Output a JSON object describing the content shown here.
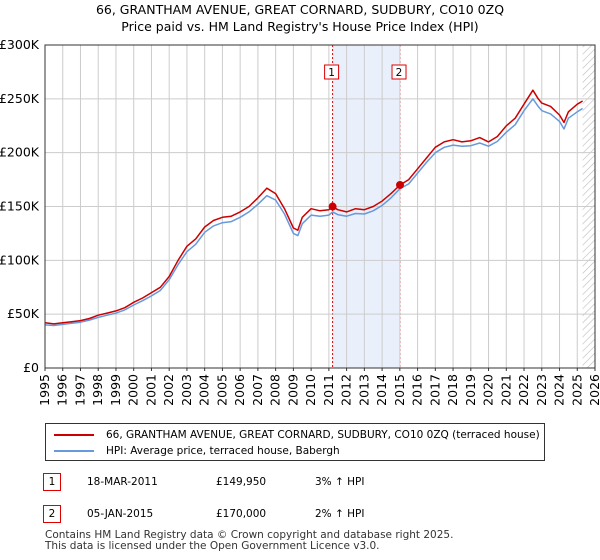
{
  "chart_data": {
    "type": "line",
    "title": "66, GRANTHAM AVENUE, GREAT CORNARD, SUDBURY, CO10 0ZQ",
    "subtitle": "Price paid vs. HM Land Registry's House Price Index (HPI)",
    "xlabel": "",
    "ylabel": "",
    "xlim": [
      1995,
      2026
    ],
    "ylim": [
      0,
      300000
    ],
    "y_ticks": [
      0,
      50000,
      100000,
      150000,
      200000,
      250000,
      300000
    ],
    "y_tick_labels": [
      "£0",
      "£50K",
      "£100K",
      "£150K",
      "£200K",
      "£250K",
      "£300K"
    ],
    "x_ticks": [
      1995,
      1996,
      1997,
      1998,
      1999,
      2000,
      2001,
      2002,
      2003,
      2004,
      2005,
      2006,
      2007,
      2008,
      2009,
      2010,
      2011,
      2012,
      2013,
      2014,
      2015,
      2016,
      2017,
      2018,
      2019,
      2020,
      2021,
      2022,
      2023,
      2024,
      2025,
      2026
    ],
    "x_tick_labels": [
      "1995",
      "1996",
      "1997",
      "1998",
      "1999",
      "2000",
      "2001",
      "2002",
      "2003",
      "2004",
      "2005",
      "2006",
      "2007",
      "2008",
      "2009",
      "2010",
      "2011",
      "2012",
      "2013",
      "2014",
      "2015",
      "2016",
      "2017",
      "2018",
      "2019",
      "2020",
      "2021",
      "2022",
      "2023",
      "2024",
      "2025",
      "2026"
    ],
    "grid": true,
    "legend_position": "below",
    "series": [
      {
        "name": "66, GRANTHAM AVENUE, GREAT CORNARD, SUDBURY, CO10 0ZQ (terraced house)",
        "color": "#cc0000",
        "x": [
          1995.0,
          1995.5,
          1996.0,
          1996.5,
          1997.0,
          1997.5,
          1998.0,
          1998.5,
          1999.0,
          1999.5,
          2000.0,
          2000.5,
          2001.0,
          2001.5,
          2002.0,
          2002.5,
          2003.0,
          2003.5,
          2004.0,
          2004.5,
          2005.0,
          2005.5,
          2006.0,
          2006.5,
          2007.0,
          2007.5,
          2008.0,
          2008.5,
          2009.0,
          2009.25,
          2009.5,
          2010.0,
          2010.5,
          2011.0,
          2011.21,
          2011.5,
          2012.0,
          2012.5,
          2013.0,
          2013.5,
          2014.0,
          2014.5,
          2015.01,
          2015.5,
          2016.0,
          2016.5,
          2017.0,
          2017.5,
          2018.0,
          2018.5,
          2019.0,
          2019.5,
          2020.0,
          2020.5,
          2021.0,
          2021.5,
          2022.0,
          2022.5,
          2022.8,
          2023.0,
          2023.5,
          2024.0,
          2024.25,
          2024.5,
          2025.0,
          2025.3
        ],
        "values": [
          42000,
          41000,
          42000,
          43000,
          44000,
          46000,
          49000,
          51000,
          53000,
          56000,
          61000,
          65000,
          70000,
          75000,
          85000,
          100000,
          113000,
          120000,
          131000,
          137000,
          140000,
          141000,
          145000,
          150000,
          158000,
          167000,
          162000,
          148000,
          130000,
          128000,
          140000,
          148000,
          146000,
          147000,
          149950,
          147000,
          145000,
          148000,
          147000,
          150000,
          155000,
          162000,
          170000,
          175000,
          185000,
          195000,
          205000,
          210000,
          212000,
          210000,
          211000,
          214000,
          210000,
          215000,
          225000,
          232000,
          245000,
          258000,
          250000,
          246000,
          243000,
          235000,
          228000,
          238000,
          245000,
          248000
        ]
      },
      {
        "name": "HPI: Average price, terraced house, Babergh",
        "color": "#6699dd",
        "x": [
          1995.0,
          1995.5,
          1996.0,
          1996.5,
          1997.0,
          1997.5,
          1998.0,
          1998.5,
          1999.0,
          1999.5,
          2000.0,
          2000.5,
          2001.0,
          2001.5,
          2002.0,
          2002.5,
          2003.0,
          2003.5,
          2004.0,
          2004.5,
          2005.0,
          2005.5,
          2006.0,
          2006.5,
          2007.0,
          2007.5,
          2008.0,
          2008.5,
          2009.0,
          2009.25,
          2009.5,
          2010.0,
          2010.5,
          2011.0,
          2011.21,
          2011.5,
          2012.0,
          2012.5,
          2013.0,
          2013.5,
          2014.0,
          2014.5,
          2015.01,
          2015.5,
          2016.0,
          2016.5,
          2017.0,
          2017.5,
          2018.0,
          2018.5,
          2019.0,
          2019.5,
          2020.0,
          2020.5,
          2021.0,
          2021.5,
          2022.0,
          2022.5,
          2022.8,
          2023.0,
          2023.5,
          2024.0,
          2024.25,
          2024.5,
          2025.0,
          2025.3
        ],
        "values": [
          40000,
          39500,
          40500,
          41500,
          42500,
          44500,
          47000,
          49000,
          51000,
          54000,
          58500,
          62500,
          67000,
          72000,
          82000,
          96000,
          108000,
          115000,
          126000,
          132000,
          135000,
          136000,
          140000,
          145000,
          152000,
          160000,
          156000,
          143000,
          125000,
          123000,
          134000,
          142000,
          141000,
          142000,
          145000,
          142500,
          141000,
          143500,
          143000,
          146000,
          151000,
          158000,
          166500,
          171000,
          181000,
          191000,
          200000,
          205000,
          207000,
          206000,
          206500,
          209000,
          206000,
          210500,
          219000,
          226000,
          239000,
          250000,
          243000,
          239000,
          236000,
          229000,
          222000,
          232000,
          238000,
          241000
        ]
      }
    ],
    "markers": [
      {
        "label": "1",
        "x": 2011.21,
        "y": 149950
      },
      {
        "label": "2",
        "x": 2015.01,
        "y": 170000
      }
    ],
    "shaded_ranges": [
      [
        2011.21,
        2015.01
      ]
    ],
    "hatched_from": 2025.3
  },
  "legend": {
    "items": [
      {
        "label": "66, GRANTHAM AVENUE, GREAT CORNARD, SUDBURY, CO10 0ZQ (terraced house)",
        "color": "#cc0000"
      },
      {
        "label": "HPI: Average price, terraced house, Babergh",
        "color": "#6699dd"
      }
    ]
  },
  "transactions": [
    {
      "num": "1",
      "date": "18-MAR-2011",
      "price": "£149,950",
      "hpi": "3% ↑ HPI"
    },
    {
      "num": "2",
      "date": "05-JAN-2015",
      "price": "£170,000",
      "hpi": "2% ↑ HPI"
    }
  ],
  "footer": {
    "line1": "Contains HM Land Registry data © Crown copyright and database right 2025.",
    "line2": "This data is licensed under the Open Government Licence v3.0."
  }
}
